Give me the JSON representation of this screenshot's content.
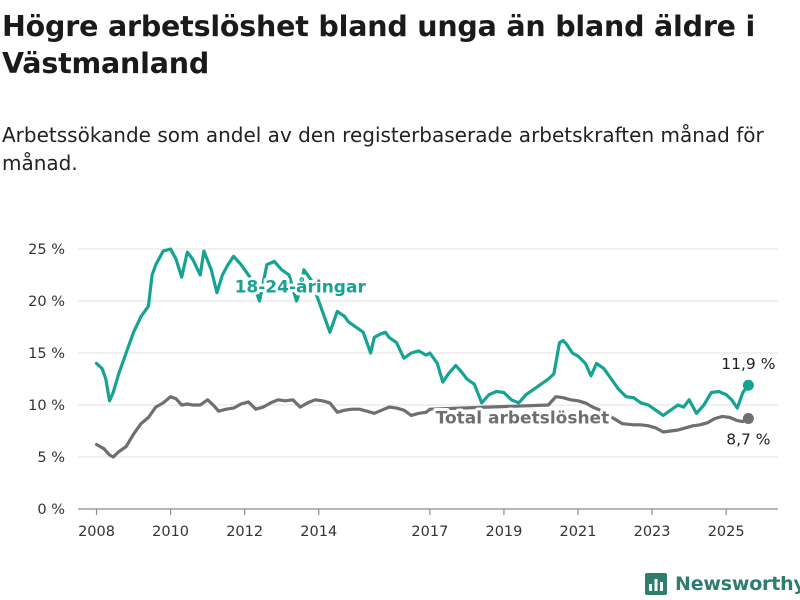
{
  "title": "Högre arbetslöshet bland unga än bland äldre i Västmanland",
  "subtitle": "Arbetssökande som andel av den registerbaserade arbetskraften månad för månad.",
  "brand": {
    "name": "Newsworthy",
    "icon": "newsworthy-logo-icon",
    "color": "#2e7d6f"
  },
  "chart_data": {
    "type": "line",
    "title": "",
    "xlabel": "",
    "ylabel": "",
    "xlim": [
      2007.5,
      2026.4
    ],
    "ylim": [
      0,
      25
    ],
    "y_ticks": [
      0,
      5,
      10,
      15,
      20,
      25
    ],
    "y_tick_labels": [
      "0 %",
      "5 %",
      "10 %",
      "15 %",
      "20 %",
      "25 %"
    ],
    "x_ticks": [
      2008,
      2010,
      2012,
      2014,
      2017,
      2019,
      2021,
      2023,
      2025
    ],
    "x_tick_labels": [
      "2008",
      "2010",
      "2012",
      "2014",
      "2017",
      "2019",
      "2021",
      "2023",
      "2025"
    ],
    "grid": true,
    "series": [
      {
        "name": "18-24-åringar",
        "color": "#16a394",
        "end_label": "11,9 %",
        "x": [
          2008.0,
          2008.15,
          2008.25,
          2008.35,
          2008.45,
          2008.6,
          2008.8,
          2009.0,
          2009.2,
          2009.4,
          2009.5,
          2009.6,
          2009.8,
          2010.0,
          2010.15,
          2010.3,
          2010.45,
          2010.6,
          2010.8,
          2010.9,
          2011.1,
          2011.25,
          2011.4,
          2011.55,
          2011.7,
          2011.9,
          2012.0,
          2012.2,
          2012.4,
          2012.6,
          2012.8,
          2013.0,
          2013.2,
          2013.4,
          2013.5,
          2013.6,
          2013.8,
          2014.0,
          2014.3,
          2014.5,
          2014.7,
          2014.8,
          2015.0,
          2015.2,
          2015.4,
          2015.5,
          2015.65,
          2015.8,
          2015.9,
          2016.1,
          2016.3,
          2016.5,
          2016.7,
          2016.9,
          2017.0,
          2017.2,
          2017.35,
          2017.5,
          2017.7,
          2017.85,
          2018.0,
          2018.2,
          2018.4,
          2018.6,
          2018.8,
          2019.0,
          2019.2,
          2019.4,
          2019.6,
          2019.8,
          2020.0,
          2020.2,
          2020.35,
          2020.5,
          2020.6,
          2020.7,
          2020.85,
          2021.0,
          2021.2,
          2021.35,
          2021.5,
          2021.7,
          2021.9,
          2022.1,
          2022.3,
          2022.5,
          2022.7,
          2022.9,
          2023.1,
          2023.3,
          2023.5,
          2023.7,
          2023.85,
          2024.0,
          2024.2,
          2024.4,
          2024.6,
          2024.8,
          2025.0,
          2025.15,
          2025.3,
          2025.45,
          2025.6
        ],
        "values": [
          14.0,
          13.5,
          12.5,
          10.4,
          11.2,
          13.0,
          15.0,
          17.0,
          18.5,
          19.5,
          22.5,
          23.5,
          24.8,
          25.0,
          24.0,
          22.3,
          24.7,
          24.0,
          22.5,
          24.8,
          23.0,
          20.8,
          22.5,
          23.5,
          24.3,
          23.5,
          23.0,
          22.0,
          20.0,
          23.5,
          23.8,
          23.0,
          22.5,
          20.0,
          21.0,
          23.0,
          22.0,
          20.0,
          17.0,
          19.0,
          18.5,
          18.0,
          17.5,
          17.0,
          15.0,
          16.5,
          16.8,
          17.0,
          16.5,
          16.0,
          14.5,
          15.0,
          15.2,
          14.8,
          15.0,
          14.0,
          12.2,
          13.0,
          13.8,
          13.2,
          12.5,
          12.0,
          10.2,
          11.0,
          11.3,
          11.2,
          10.5,
          10.2,
          11.0,
          11.5,
          12.0,
          12.5,
          13.0,
          16.0,
          16.2,
          15.8,
          15.0,
          14.7,
          14.0,
          12.8,
          14.0,
          13.5,
          12.5,
          11.5,
          10.8,
          10.7,
          10.2,
          10.0,
          9.5,
          9.0,
          9.5,
          10.0,
          9.8,
          10.5,
          9.2,
          10.0,
          11.2,
          11.3,
          11.0,
          10.5,
          9.7,
          11.2,
          11.9
        ]
      },
      {
        "name": "Total arbetslöshet",
        "color": "#6e6e73",
        "end_label": "8,7 %",
        "x": [
          2008.0,
          2008.2,
          2008.35,
          2008.45,
          2008.6,
          2008.8,
          2009.0,
          2009.2,
          2009.4,
          2009.6,
          2009.8,
          2010.0,
          2010.15,
          2010.3,
          2010.45,
          2010.6,
          2010.8,
          2011.0,
          2011.15,
          2011.3,
          2011.5,
          2011.7,
          2011.9,
          2012.1,
          2012.3,
          2012.5,
          2012.7,
          2012.9,
          2013.1,
          2013.3,
          2013.5,
          2013.7,
          2013.9,
          2014.1,
          2014.3,
          2014.5,
          2014.7,
          2014.9,
          2015.1,
          2015.3,
          2015.5,
          2015.7,
          2015.9,
          2016.1,
          2016.3,
          2016.5,
          2016.7,
          2016.9,
          2017.0,
          2020.2,
          2020.4,
          2020.6,
          2020.8,
          2021.0,
          2021.2,
          2021.4,
          2021.6,
          2022.2,
          2022.5,
          2022.7,
          2022.9,
          2023.1,
          2023.3,
          2023.5,
          2023.7,
          2023.9,
          2024.1,
          2024.3,
          2024.5,
          2024.7,
          2024.9,
          2025.1,
          2025.3,
          2025.45,
          2025.6
        ],
        "values": [
          6.2,
          5.8,
          5.2,
          5.0,
          5.5,
          6.0,
          7.2,
          8.2,
          8.8,
          9.8,
          10.2,
          10.8,
          10.6,
          10.0,
          10.1,
          10.0,
          10.0,
          10.5,
          10.0,
          9.4,
          9.6,
          9.7,
          10.1,
          10.3,
          9.6,
          9.8,
          10.2,
          10.5,
          10.4,
          10.5,
          9.8,
          10.2,
          10.5,
          10.4,
          10.2,
          9.3,
          9.5,
          9.6,
          9.6,
          9.4,
          9.2,
          9.5,
          9.8,
          9.7,
          9.5,
          9.0,
          9.2,
          9.3,
          9.6,
          10.0,
          10.8,
          10.7,
          10.5,
          10.4,
          10.2,
          9.8,
          9.5,
          8.2,
          8.1,
          8.1,
          8.0,
          7.8,
          7.4,
          7.5,
          7.6,
          7.8,
          8.0,
          8.1,
          8.3,
          8.7,
          8.9,
          8.8,
          8.5,
          8.4,
          8.7
        ]
      }
    ]
  }
}
